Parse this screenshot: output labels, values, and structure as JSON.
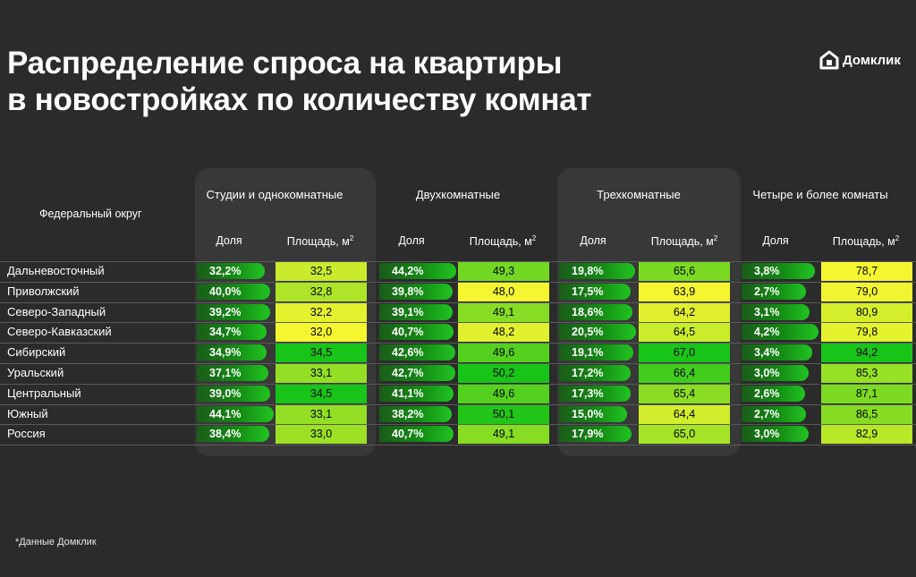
{
  "title_line1": "Распределение спроса на квартиры",
  "title_line2": "в новостройках по количеству комнат",
  "logo_text": "Домклик",
  "footnote": "*Данные Домклик",
  "chart_data": {
    "type": "table",
    "region_header": "Федеральный округ",
    "share_label": "Доля",
    "area_label": "Площадь, м",
    "area_unit_sup": "2",
    "groups": [
      {
        "name": "Студии и однокомнатные",
        "shares": [
          "32,2%",
          "40,0%",
          "39,2%",
          "34,7%",
          "34,9%",
          "37,1%",
          "39,0%",
          "44,1%",
          "38,4%"
        ],
        "areas": [
          "32,5",
          "32,8",
          "32,2",
          "32,0",
          "34,5",
          "33,1",
          "34,5",
          "33,1",
          "33,0"
        ]
      },
      {
        "name": "Двухкомнатные",
        "shares": [
          "44,2%",
          "39,8%",
          "39,1%",
          "40,7%",
          "42,6%",
          "42,7%",
          "41,1%",
          "38,2%",
          "40,7%"
        ],
        "areas": [
          "49,3",
          "48,0",
          "49,1",
          "48,2",
          "49,6",
          "50,2",
          "49,6",
          "50,1",
          "49,1"
        ]
      },
      {
        "name": "Трехкомнатные",
        "shares": [
          "19,8%",
          "17,5%",
          "18,6%",
          "20,5%",
          "19,1%",
          "17,2%",
          "17,3%",
          "15,0%",
          "17,9%"
        ],
        "areas": [
          "65,6",
          "63,9",
          "64,2",
          "64,5",
          "67,0",
          "66,4",
          "65,4",
          "64,4",
          "65,0"
        ]
      },
      {
        "name": "Четыре и более комнаты",
        "shares": [
          "3,8%",
          "2,7%",
          "3,1%",
          "4,2%",
          "3,4%",
          "3,0%",
          "2,6%",
          "2,7%",
          "3,0%"
        ],
        "areas": [
          "78,7",
          "79,0",
          "80,9",
          "79,8",
          "94,2",
          "85,3",
          "87,1",
          "86,5",
          "82,9"
        ]
      }
    ],
    "regions": [
      "Дальневосточный",
      "Приволжский",
      "Северо-Западный",
      "Северо-Кавказский",
      "Сибирский",
      "Уральский",
      "Центральный",
      "Южный",
      "Россия"
    ],
    "colors": {
      "low": "#f5f530",
      "high": "#17c417"
    }
  }
}
